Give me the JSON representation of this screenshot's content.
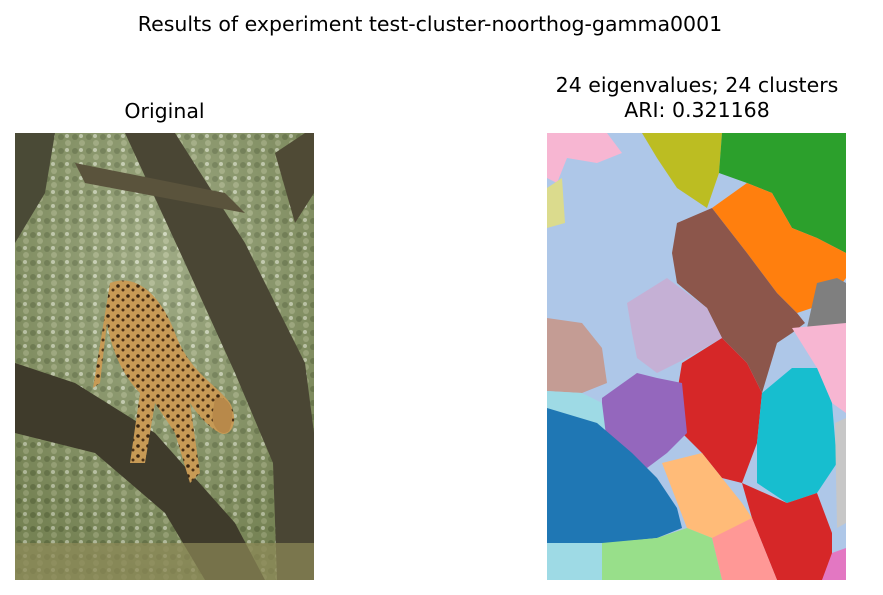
{
  "figure": {
    "suptitle": "Results of experiment test-cluster-noorthog-gamma0001"
  },
  "left_panel": {
    "title": "Original",
    "image_subject": "leopard climbing down a tree branch"
  },
  "right_panel": {
    "title_line1": "24 eigenvalues; 24 clusters",
    "title_line2": "ARI: 0.321168"
  },
  "colors": {
    "tab20": [
      "#1f77b4",
      "#aec7e8",
      "#ff7f0e",
      "#ffbb78",
      "#2ca02c",
      "#98df8a",
      "#d62728",
      "#ff9896",
      "#9467bd",
      "#c5b0d5",
      "#8c564b",
      "#c49c94",
      "#e377c2",
      "#f7b6d2",
      "#7f7f7f",
      "#c7c7c7",
      "#bcbd22",
      "#dbdb8d",
      "#17becf",
      "#9edae5"
    ]
  }
}
